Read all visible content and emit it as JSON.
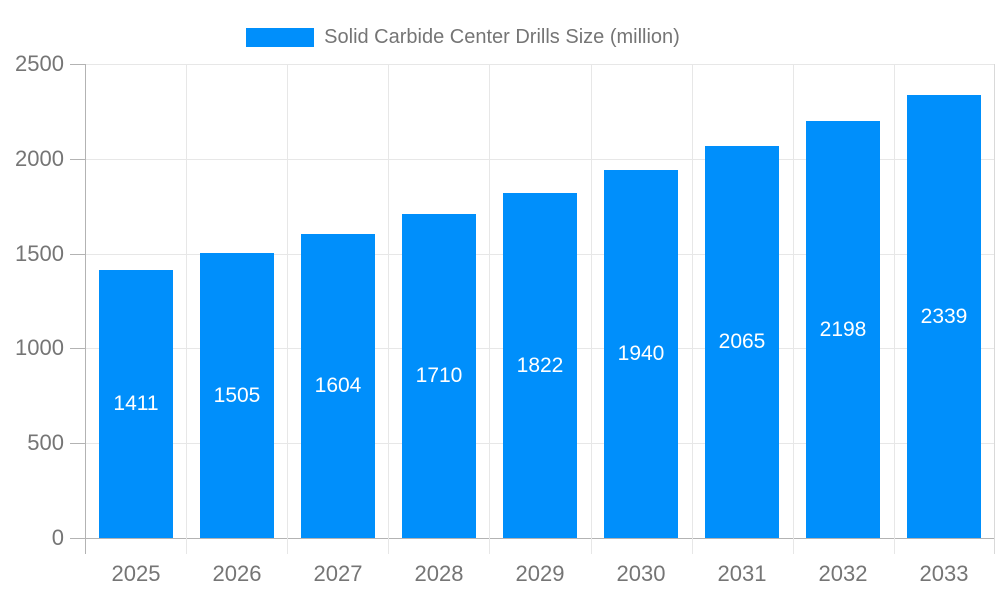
{
  "chart_data": {
    "type": "bar",
    "title": "Solid Carbide Center Drills Size (million)",
    "categories": [
      "2025",
      "2026",
      "2027",
      "2028",
      "2029",
      "2030",
      "2031",
      "2032",
      "2033"
    ],
    "values": [
      1411,
      1505,
      1604,
      1710,
      1822,
      1940,
      2065,
      2198,
      2339
    ],
    "xlabel": "",
    "ylabel": "",
    "ylim": [
      0,
      2500
    ],
    "yticks": [
      0,
      500,
      1000,
      1500,
      2000,
      2500
    ],
    "grid": true,
    "legend_position": "top",
    "value_labels": "centered-inside-bars",
    "colors": {
      "bar": "#008ffb",
      "grid": "#e7e7e7",
      "axis": "#b3b3b3",
      "plot_right_border": "#d9d9d9",
      "tick_label": "#757575",
      "value_label": "#ffffff",
      "background": "#ffffff"
    }
  }
}
